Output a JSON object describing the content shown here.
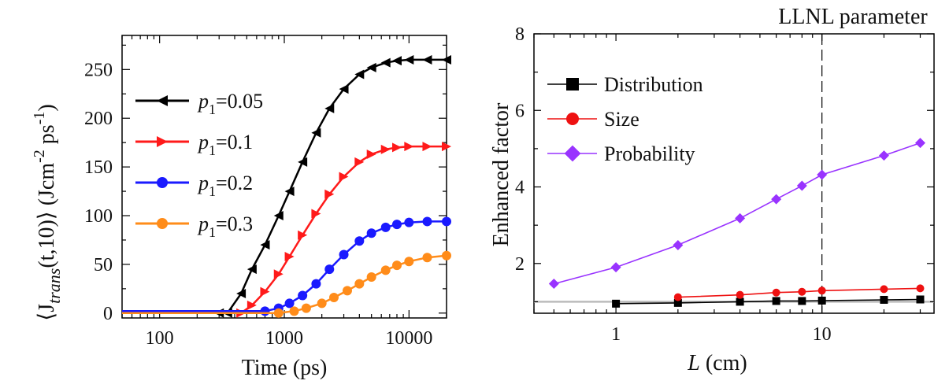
{
  "chart_data": [
    {
      "type": "line",
      "x_scale": "log",
      "xlabel": "Time (ps)",
      "ylabel_prefix": "⟨J",
      "ylabel_sub": "trans",
      "ylabel_args": "(t,10)⟩ (Jcm",
      "ylabel_exp1": "-2",
      "ylabel_mid": " ps",
      "ylabel_exp2": "-1",
      "ylabel_end": ")",
      "xlim": [
        50,
        20000
      ],
      "ylim": [
        -5,
        285
      ],
      "xticks": [
        100,
        1000,
        10000
      ],
      "xtick_labels": [
        "100",
        "1000",
        "10000"
      ],
      "yticks": [
        0,
        50,
        100,
        150,
        200,
        250
      ],
      "ytick_labels": [
        "0",
        "50",
        "100",
        "150",
        "200",
        "250"
      ],
      "legend_position": "upper-left",
      "series": [
        {
          "name_var": "p",
          "name_sub": "1",
          "name_val": "=0.05",
          "color": "#000000",
          "marker": "triangle-left",
          "x": [
            50,
            300,
            350,
            450,
            550,
            700,
            900,
            1100,
            1400,
            1800,
            2300,
            3000,
            4000,
            5000,
            6500,
            8000,
            10000,
            14000,
            20000
          ],
          "y": [
            0,
            0,
            0,
            20,
            45,
            70,
            100,
            125,
            155,
            185,
            210,
            230,
            245,
            252,
            257,
            259,
            260,
            260,
            260
          ]
        },
        {
          "name_var": "p",
          "name_sub": "1",
          "name_val": "=0.1",
          "color": "#ff1a1a",
          "marker": "triangle-right",
          "x": [
            50,
            450,
            550,
            700,
            900,
            1100,
            1400,
            1800,
            2300,
            3000,
            4000,
            5000,
            6500,
            8000,
            10000,
            14000,
            20000
          ],
          "y": [
            0,
            0,
            8,
            22,
            40,
            58,
            80,
            102,
            122,
            140,
            155,
            163,
            168,
            170,
            171,
            171,
            171
          ]
        },
        {
          "name_var": "p",
          "name_sub": "1",
          "name_val": "=0.2",
          "color": "#1a1aff",
          "marker": "circle",
          "x": [
            50,
            700,
            900,
            1100,
            1400,
            1800,
            2300,
            3000,
            4000,
            5000,
            6500,
            8000,
            10000,
            14000,
            20000
          ],
          "y": [
            2,
            2,
            5,
            10,
            18,
            30,
            45,
            60,
            74,
            82,
            88,
            91,
            93,
            94,
            94
          ]
        },
        {
          "name_var": "p",
          "name_sub": "1",
          "name_val": "=0.3",
          "color": "#ff8c1a",
          "marker": "circle",
          "x": [
            50,
            900,
            1200,
            1500,
            2000,
            2500,
            3200,
            4000,
            5000,
            6500,
            8000,
            10000,
            14000,
            20000
          ],
          "y": [
            0,
            0,
            2,
            5,
            10,
            16,
            23,
            30,
            37,
            44,
            49,
            53,
            57,
            59
          ]
        }
      ]
    },
    {
      "type": "line",
      "x_scale": "log",
      "title": "LLNL parameter",
      "xlabel_var": "L",
      "xlabel_unit": " (cm)",
      "ylabel": "Enhanced factor",
      "xlim": [
        0.4,
        35
      ],
      "ylim": [
        0.7,
        8
      ],
      "xticks": [
        1,
        10
      ],
      "xtick_labels": [
        "1",
        "10"
      ],
      "yticks": [
        2,
        4,
        6,
        8
      ],
      "ytick_labels": [
        "2",
        "4",
        "6",
        "8"
      ],
      "reference_line_y": 1.0,
      "reference_line_color": "#bbbbbb",
      "vline_x": 10,
      "legend_position": "upper-left",
      "series": [
        {
          "name": "Distribution",
          "color": "#000000",
          "marker": "square",
          "x": [
            1,
            2,
            4,
            6,
            8,
            10,
            20,
            30
          ],
          "y": [
            0.95,
            0.97,
            1.0,
            1.02,
            1.02,
            1.03,
            1.05,
            1.06
          ]
        },
        {
          "name": "Size",
          "color": "#ee1111",
          "marker": "circle",
          "x": [
            2,
            4,
            6,
            8,
            10,
            20,
            30
          ],
          "y": [
            1.12,
            1.18,
            1.24,
            1.26,
            1.29,
            1.33,
            1.35
          ]
        },
        {
          "name": "Probability",
          "color": "#9933ff",
          "marker": "diamond",
          "x": [
            0.5,
            1,
            2,
            4,
            6,
            8,
            10,
            20,
            30
          ],
          "y": [
            1.47,
            1.9,
            2.48,
            3.18,
            3.68,
            4.03,
            4.32,
            4.82,
            5.15
          ]
        }
      ]
    }
  ]
}
